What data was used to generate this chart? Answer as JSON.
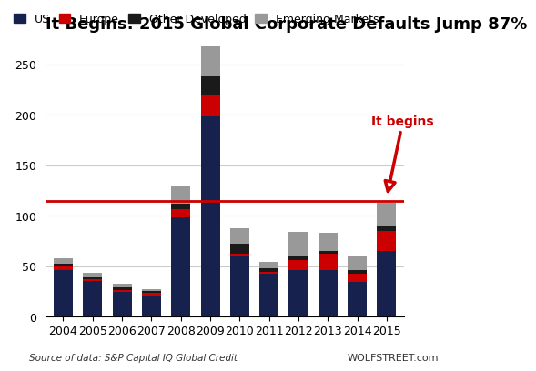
{
  "years": [
    "2004",
    "2005",
    "2006",
    "2007",
    "2008",
    "2009",
    "2010",
    "2011",
    "2012",
    "2013",
    "2014",
    "2015"
  ],
  "US": [
    46,
    35,
    24,
    21,
    98,
    198,
    60,
    42,
    46,
    46,
    34,
    65
  ],
  "Europe": [
    4,
    2,
    2,
    2,
    8,
    22,
    2,
    2,
    10,
    16,
    8,
    20
  ],
  "Other_Developed": [
    2,
    2,
    3,
    2,
    6,
    18,
    10,
    4,
    4,
    3,
    4,
    4
  ],
  "Emerging_Markets": [
    6,
    4,
    3,
    2,
    18,
    30,
    15,
    6,
    24,
    18,
    14,
    24
  ],
  "colors": {
    "US": "#17214d",
    "Europe": "#cc0000",
    "Other_Developed": "#1a1a1a",
    "Emerging_Markets": "#999999"
  },
  "title": "It Begins: 2015 Global Corporate Defaults Jump 87%",
  "hline_y": 114,
  "hline_color": "#cc0000",
  "arrow_text": "It begins",
  "arrow_color": "#cc0000",
  "xlabel": "",
  "ylabel": "",
  "ylim": [
    0,
    275
  ],
  "yticks": [
    0,
    50,
    100,
    150,
    200,
    250
  ],
  "source_text": "Source of data: S&P Capital IQ Global Credit",
  "watermark_text": "WOLFSTREET.com",
  "background_color": "#ffffff",
  "plot_background": "#ffffff",
  "grid_color": "#cccccc",
  "title_fontsize": 13,
  "legend_fontsize": 9,
  "tick_fontsize": 9
}
